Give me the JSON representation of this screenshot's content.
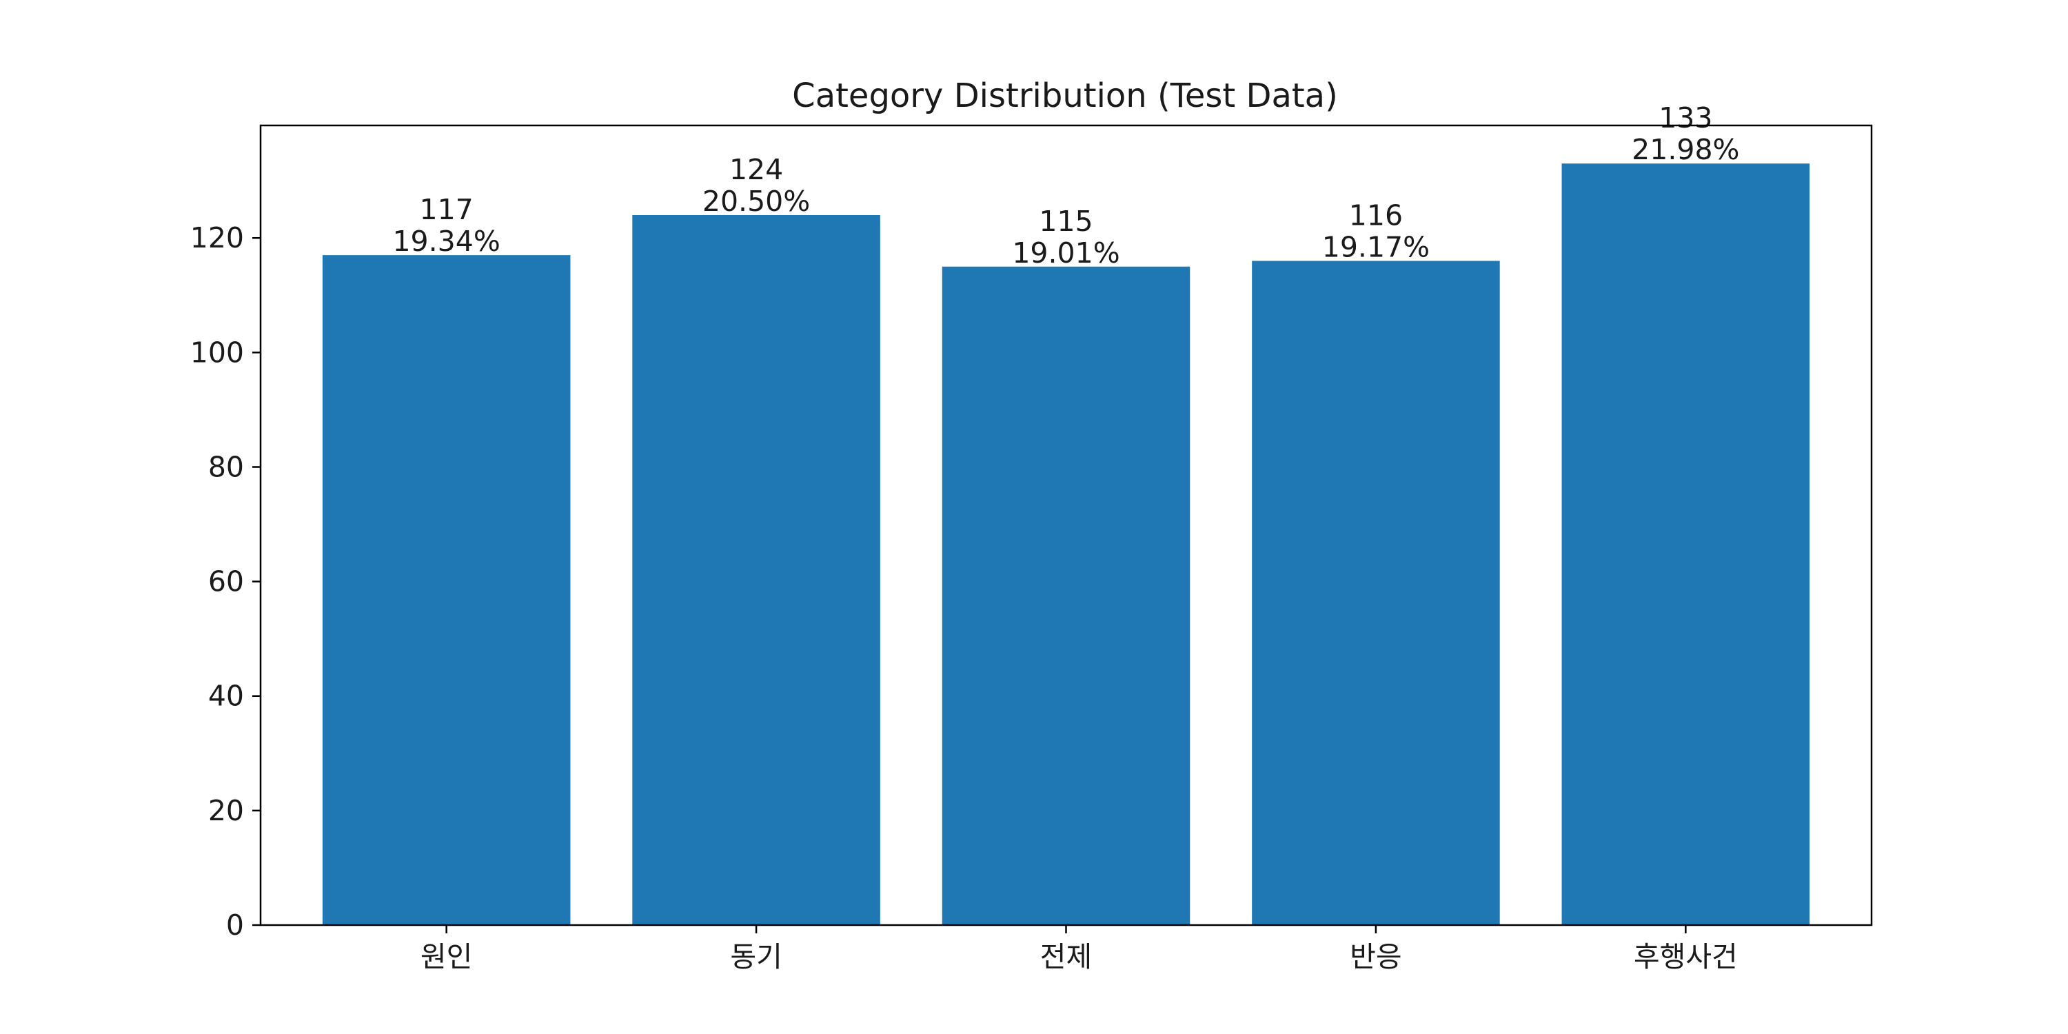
{
  "chart_data": {
    "type": "bar",
    "title": "Category Distribution (Test Data)",
    "xlabel": "",
    "ylabel": "",
    "categories": [
      "원인",
      "동기",
      "전제",
      "반응",
      "후행사건"
    ],
    "values": [
      117,
      124,
      115,
      116,
      133
    ],
    "percent_labels": [
      "19.34%",
      "20.50%",
      "19.01%",
      "19.17%",
      "21.98%"
    ],
    "ylim": [
      0,
      139.65
    ],
    "yticks": [
      0,
      20,
      40,
      60,
      80,
      100,
      120
    ],
    "grid": false,
    "legend": "none",
    "bar_color": "#1f77b4"
  }
}
